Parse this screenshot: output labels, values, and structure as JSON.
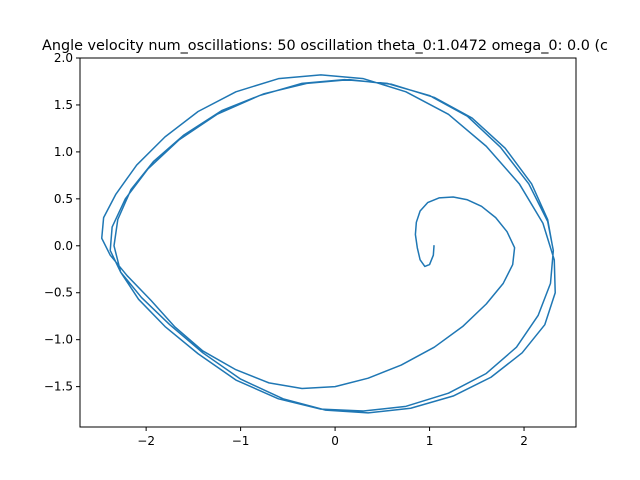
{
  "chart_data": {
    "type": "line",
    "title": "Angle velocity num_oscillations: 50 oscillation theta_0:1.0472 omega_0: 0.0 (c",
    "xlabel": "",
    "ylabel": "",
    "xlim": [
      -2.7,
      2.55
    ],
    "ylim": [
      -1.93,
      2.0
    ],
    "grid": false,
    "legend": "none",
    "x_ticks": [
      {
        "value": -2,
        "label": "−2"
      },
      {
        "value": -1,
        "label": "−1"
      },
      {
        "value": 0,
        "label": "0"
      },
      {
        "value": 1,
        "label": "1"
      },
      {
        "value": 2,
        "label": "2"
      }
    ],
    "y_ticks": [
      {
        "value": 2.0,
        "label": "2.0"
      },
      {
        "value": 1.5,
        "label": "1.5"
      },
      {
        "value": 1.0,
        "label": "1.0"
      },
      {
        "value": 0.5,
        "label": "0.5"
      },
      {
        "value": 0.0,
        "label": "0.0"
      },
      {
        "value": -0.5,
        "label": "−0.5"
      },
      {
        "value": -1.0,
        "label": "−1.0"
      },
      {
        "value": -1.5,
        "label": "−1.5"
      }
    ],
    "series": [
      {
        "color": "#1f77b4",
        "x": [
          1.047,
          1.04,
          1.0,
          0.95,
          0.9,
          0.87,
          0.85,
          0.86,
          0.9,
          0.98,
          1.1,
          1.25,
          1.4,
          1.55,
          1.7,
          1.82,
          1.9,
          1.88,
          1.78,
          1.6,
          1.35,
          1.05,
          0.7,
          0.35,
          0.0,
          -0.35,
          -0.7,
          -1.05,
          -1.4,
          -1.7,
          -1.95,
          -2.2,
          -2.38,
          -2.47,
          -2.45,
          -2.32,
          -2.1,
          -1.8,
          -1.45,
          -1.05,
          -0.6,
          -0.15,
          0.3,
          0.75,
          1.2,
          1.6,
          1.95,
          2.2,
          2.32,
          2.33,
          2.22,
          1.98,
          1.65,
          1.25,
          0.8,
          0.35,
          -0.1,
          -0.55,
          -1.0,
          -1.4,
          -1.75,
          -2.05,
          -2.27,
          -2.38,
          -2.36,
          -2.22,
          -1.98,
          -1.65,
          -1.25,
          -0.8,
          -0.35,
          0.1,
          0.55,
          1.0,
          1.4,
          1.75,
          2.05,
          2.25,
          2.31,
          2.28,
          2.15,
          1.92,
          1.6,
          1.2,
          0.75,
          0.3,
          -0.15,
          -0.6,
          -1.05,
          -1.45,
          -1.8,
          -2.08,
          -2.27,
          -2.34,
          -2.3,
          -2.16,
          -1.92,
          -1.6,
          -1.2,
          -0.75,
          -0.3,
          0.15,
          0.6,
          1.05,
          1.45,
          1.8,
          2.08,
          2.25,
          2.3
        ],
        "y": [
          0.0,
          -0.1,
          -0.2,
          -0.22,
          -0.15,
          -0.02,
          0.12,
          0.25,
          0.37,
          0.46,
          0.51,
          0.52,
          0.49,
          0.42,
          0.3,
          0.15,
          -0.02,
          -0.2,
          -0.4,
          -0.62,
          -0.86,
          -1.08,
          -1.27,
          -1.41,
          -1.5,
          -1.52,
          -1.46,
          -1.32,
          -1.12,
          -0.86,
          -0.58,
          -0.32,
          -0.1,
          0.08,
          0.3,
          0.55,
          0.86,
          1.16,
          1.43,
          1.64,
          1.78,
          1.82,
          1.78,
          1.64,
          1.4,
          1.06,
          0.66,
          0.24,
          -0.15,
          -0.5,
          -0.84,
          -1.14,
          -1.4,
          -1.6,
          -1.73,
          -1.78,
          -1.75,
          -1.63,
          -1.42,
          -1.14,
          -0.84,
          -0.55,
          -0.28,
          -0.05,
          0.2,
          0.5,
          0.82,
          1.13,
          1.4,
          1.6,
          1.73,
          1.77,
          1.73,
          1.6,
          1.38,
          1.05,
          0.66,
          0.26,
          -0.05,
          -0.4,
          -0.74,
          -1.08,
          -1.36,
          -1.57,
          -1.71,
          -1.76,
          -1.74,
          -1.63,
          -1.43,
          -1.15,
          -0.86,
          -0.57,
          -0.28,
          0.0,
          0.28,
          0.6,
          0.9,
          1.18,
          1.44,
          1.62,
          1.73,
          1.77,
          1.72,
          1.58,
          1.36,
          1.04,
          0.66,
          0.28,
          0.0
        ]
      }
    ]
  }
}
